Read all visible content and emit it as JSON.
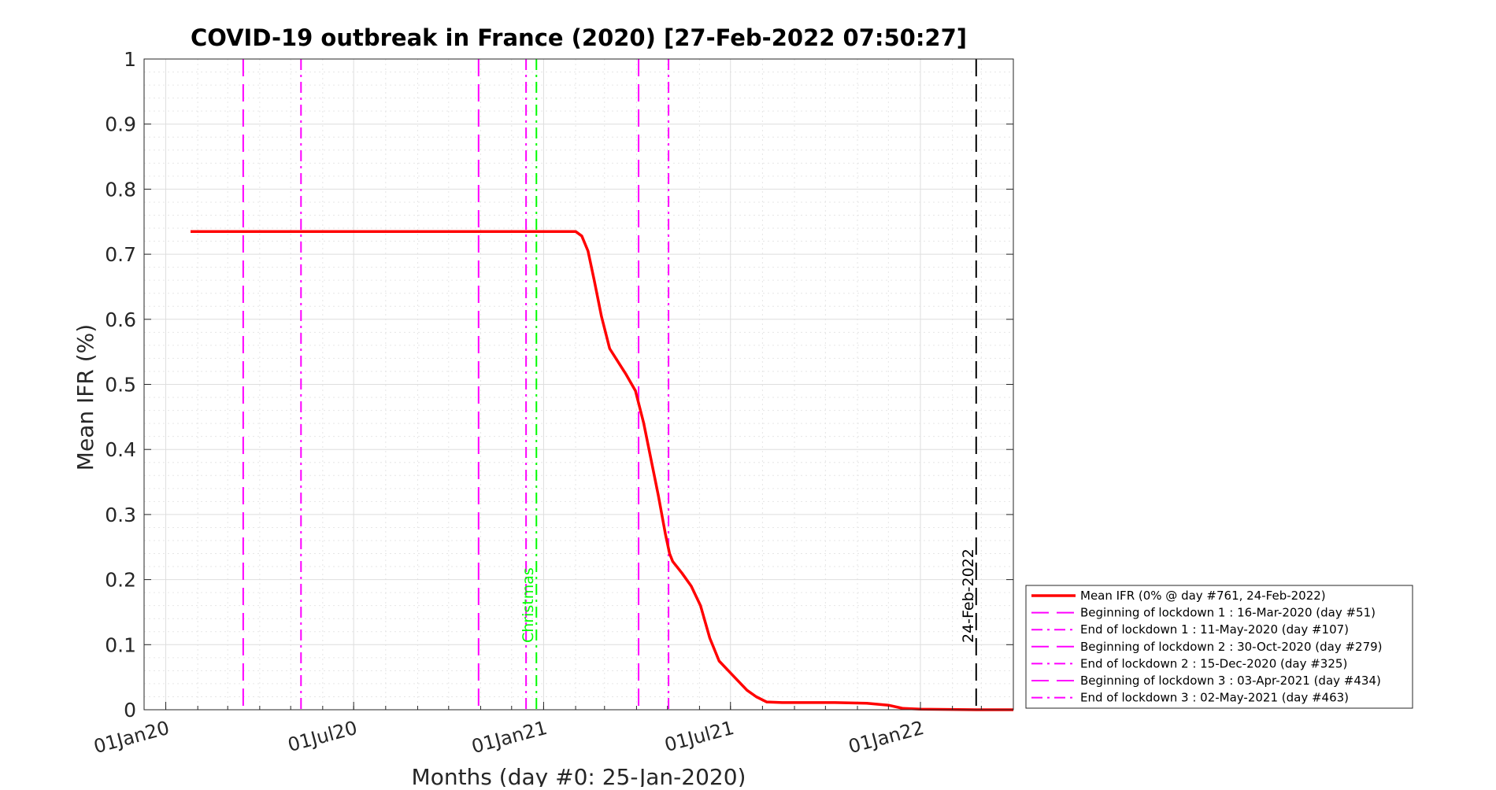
{
  "chart_data": {
    "type": "line",
    "title": "COVID-19 outbreak in France (2020) [27-Feb-2022 07:50:27]",
    "xlabel": "Months (day #0: 25-Jan-2020)",
    "ylabel": "Mean IFR (%)",
    "x_unit": "date",
    "xlim": [
      "2019-12-11",
      "2022-04-01"
    ],
    "ylim": [
      0,
      1
    ],
    "yticks": [
      0,
      0.1,
      0.2,
      0.3,
      0.4,
      0.5,
      0.6,
      0.7,
      0.8,
      0.9,
      1
    ],
    "ytick_labels": [
      "0",
      "0.1",
      "0.2",
      "0.3",
      "0.4",
      "0.5",
      "0.6",
      "0.7",
      "0.8",
      "0.9",
      "1"
    ],
    "xticks": [
      "2020-01-01",
      "2020-07-01",
      "2021-01-01",
      "2021-07-01",
      "2022-01-01"
    ],
    "xtick_labels": [
      "01Jan20",
      "01Jul20",
      "01Jan21",
      "01Jul21",
      "01Jan22"
    ],
    "grid": true,
    "minor_grid": true,
    "legend_position": "outside-right-bottom",
    "series": [
      {
        "name": "Mean IFR (0% @ day #761, 24-Feb-2022)",
        "color": "#ff0000",
        "style": "solid",
        "x": [
          "2020-01-25",
          "2020-04-01",
          "2020-07-01",
          "2020-10-01",
          "2021-01-01",
          "2021-02-01",
          "2021-02-07",
          "2021-02-13",
          "2021-02-19",
          "2021-02-26",
          "2021-03-06",
          "2021-03-14",
          "2021-03-22",
          "2021-03-31",
          "2021-04-08",
          "2021-04-15",
          "2021-04-22",
          "2021-04-29",
          "2021-05-03",
          "2021-05-06",
          "2021-05-15",
          "2021-05-24",
          "2021-06-02",
          "2021-06-11",
          "2021-06-20",
          "2021-06-29",
          "2021-07-08",
          "2021-07-17",
          "2021-07-26",
          "2021-08-05",
          "2021-08-20",
          "2021-09-10",
          "2021-10-10",
          "2021-11-10",
          "2021-12-01",
          "2021-12-15",
          "2022-01-01",
          "2022-02-24",
          "2022-04-01"
        ],
        "y": [
          0.735,
          0.735,
          0.735,
          0.735,
          0.735,
          0.735,
          0.728,
          0.705,
          0.66,
          0.605,
          0.555,
          0.535,
          0.515,
          0.49,
          0.44,
          0.385,
          0.33,
          0.27,
          0.24,
          0.228,
          0.21,
          0.19,
          0.16,
          0.11,
          0.075,
          0.06,
          0.045,
          0.03,
          0.02,
          0.012,
          0.011,
          0.011,
          0.011,
          0.01,
          0.007,
          0.002,
          0.001,
          0.0,
          0.0
        ]
      }
    ],
    "vlines": [
      {
        "date": "2020-03-16",
        "color": "#ff00ff",
        "style": "dashed",
        "legend": "Beginning of lockdown 1 : 16-Mar-2020 (day #51)"
      },
      {
        "date": "2020-05-11",
        "color": "#ff00ff",
        "style": "dashdot",
        "legend": "End of lockdown 1 : 11-May-2020 (day #107)"
      },
      {
        "date": "2020-10-30",
        "color": "#ff00ff",
        "style": "dashed",
        "legend": "Beginning of lockdown 2 : 30-Oct-2020 (day #279)"
      },
      {
        "date": "2020-12-15",
        "color": "#ff00ff",
        "style": "dashdot",
        "legend": "End of lockdown 2 : 15-Dec-2020 (day #325)"
      },
      {
        "date": "2021-04-03",
        "color": "#ff00ff",
        "style": "dashed",
        "legend": "Beginning of lockdown 3 : 03-Apr-2021 (day #434)"
      },
      {
        "date": "2021-05-02",
        "color": "#ff00ff",
        "style": "dashdot",
        "legend": "End of lockdown 3 : 02-May-2021 (day #463)"
      },
      {
        "date": "2020-12-25",
        "color": "#00ff00",
        "style": "dashdot",
        "label": "Christmas"
      },
      {
        "date": "2022-02-24",
        "color": "#000000",
        "style": "dashed",
        "label": "24-Feb-2022"
      }
    ]
  }
}
